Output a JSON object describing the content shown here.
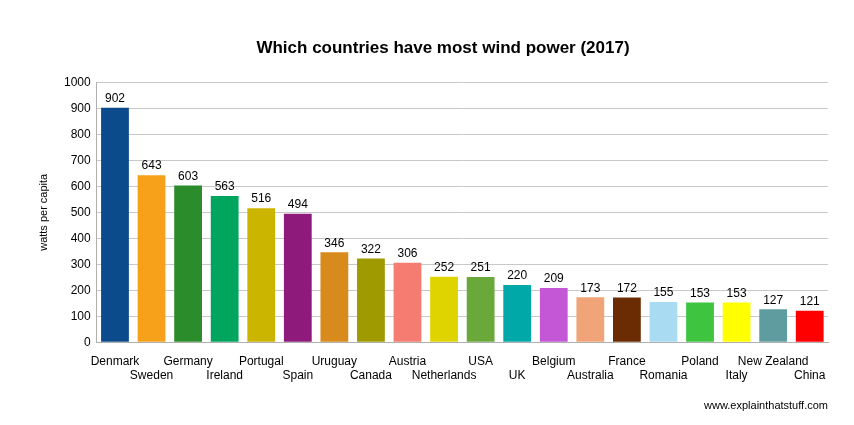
{
  "chart_data": {
    "type": "bar",
    "title": "Which countries have most wind power (2017)",
    "y_label": "watts per capita",
    "annotations": [
      "www.explainthatstuff.com"
    ],
    "categories": [
      "Denmark",
      "Sweden",
      "Germany",
      "Ireland",
      "Portugal",
      "Spain",
      "Uruguay",
      "Canada",
      "Austria",
      "Netherlands",
      "USA",
      "UK",
      "Belgium",
      "Australia",
      "France",
      "Romania",
      "Poland",
      "Italy",
      "New Zealand",
      "China"
    ],
    "values": [
      902,
      643,
      603,
      563,
      516,
      494,
      346,
      322,
      306,
      252,
      251,
      220,
      209,
      173,
      172,
      155,
      153,
      153,
      127,
      121
    ],
    "colors": [
      "#0b4a8b",
      "#f7a11a",
      "#2a8c2a",
      "#00a65d",
      "#cbb500",
      "#8e1a7b",
      "#d98a1c",
      "#9e9a00",
      "#f47c70",
      "#dfd400",
      "#6aa83a",
      "#00a8a8",
      "#c357d6",
      "#f0a477",
      "#6b2c04",
      "#a9dcf2",
      "#3ec43e",
      "#ffff00",
      "#5f9ca0",
      "#ff0000"
    ],
    "ylim": [
      0,
      1000
    ],
    "yticks": [
      0,
      100,
      200,
      300,
      400,
      500,
      600,
      700,
      800,
      900,
      1000
    ],
    "grid": true,
    "data_labels": true
  }
}
